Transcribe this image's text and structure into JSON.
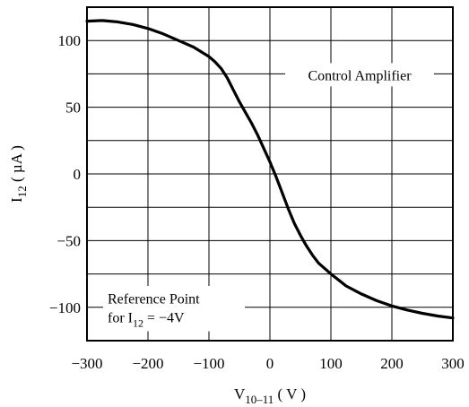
{
  "chart_data": {
    "type": "line",
    "x_ticks": [
      -300,
      -200,
      -100,
      0,
      100,
      200,
      300
    ],
    "x_tick_labels": [
      "−300",
      "−200",
      "−100",
      "0",
      "100",
      "200",
      "300"
    ],
    "y_ticks": [
      100,
      50,
      0,
      -50,
      -100
    ],
    "y_tick_labels": [
      "100",
      "50",
      "0",
      "−50",
      "−100"
    ],
    "xlim": [
      -300,
      300
    ],
    "ylim": [
      -125,
      125
    ],
    "xlabel": {
      "main": "V",
      "sub": "10–11",
      "unit": " ( V )"
    },
    "ylabel": {
      "main": "I",
      "sub": "12",
      "unit": " ( µA )"
    },
    "grid": true,
    "annotations": {
      "control_amplifier": "Control Amplifier",
      "reference_line1": "Reference Point",
      "reference_line2_prefix": "for I",
      "reference_line2_sub": "12",
      "reference_line2_suffix": " = −4V"
    },
    "series": [
      {
        "x": [
          -300,
          -275,
          -250,
          -225,
          -200,
          -175,
          -150,
          -125,
          -100,
          -90,
          -80,
          -70,
          -60,
          -50,
          -40,
          -30,
          -20,
          -10,
          0,
          10,
          20,
          30,
          40,
          50,
          60,
          70,
          80,
          90,
          100,
          125,
          150,
          175,
          200,
          225,
          250,
          275,
          300
        ],
        "y": [
          114.5,
          115,
          114,
          112,
          109,
          105,
          100,
          95,
          88,
          84,
          79,
          72,
          63,
          54,
          46,
          38,
          29,
          19,
          9,
          -2,
          -14,
          -26,
          -37,
          -46,
          -54,
          -61,
          -67,
          -71,
          -75,
          -84,
          -90,
          -95,
          -99,
          -102,
          -104.5,
          -106.5,
          -108
        ]
      }
    ]
  }
}
